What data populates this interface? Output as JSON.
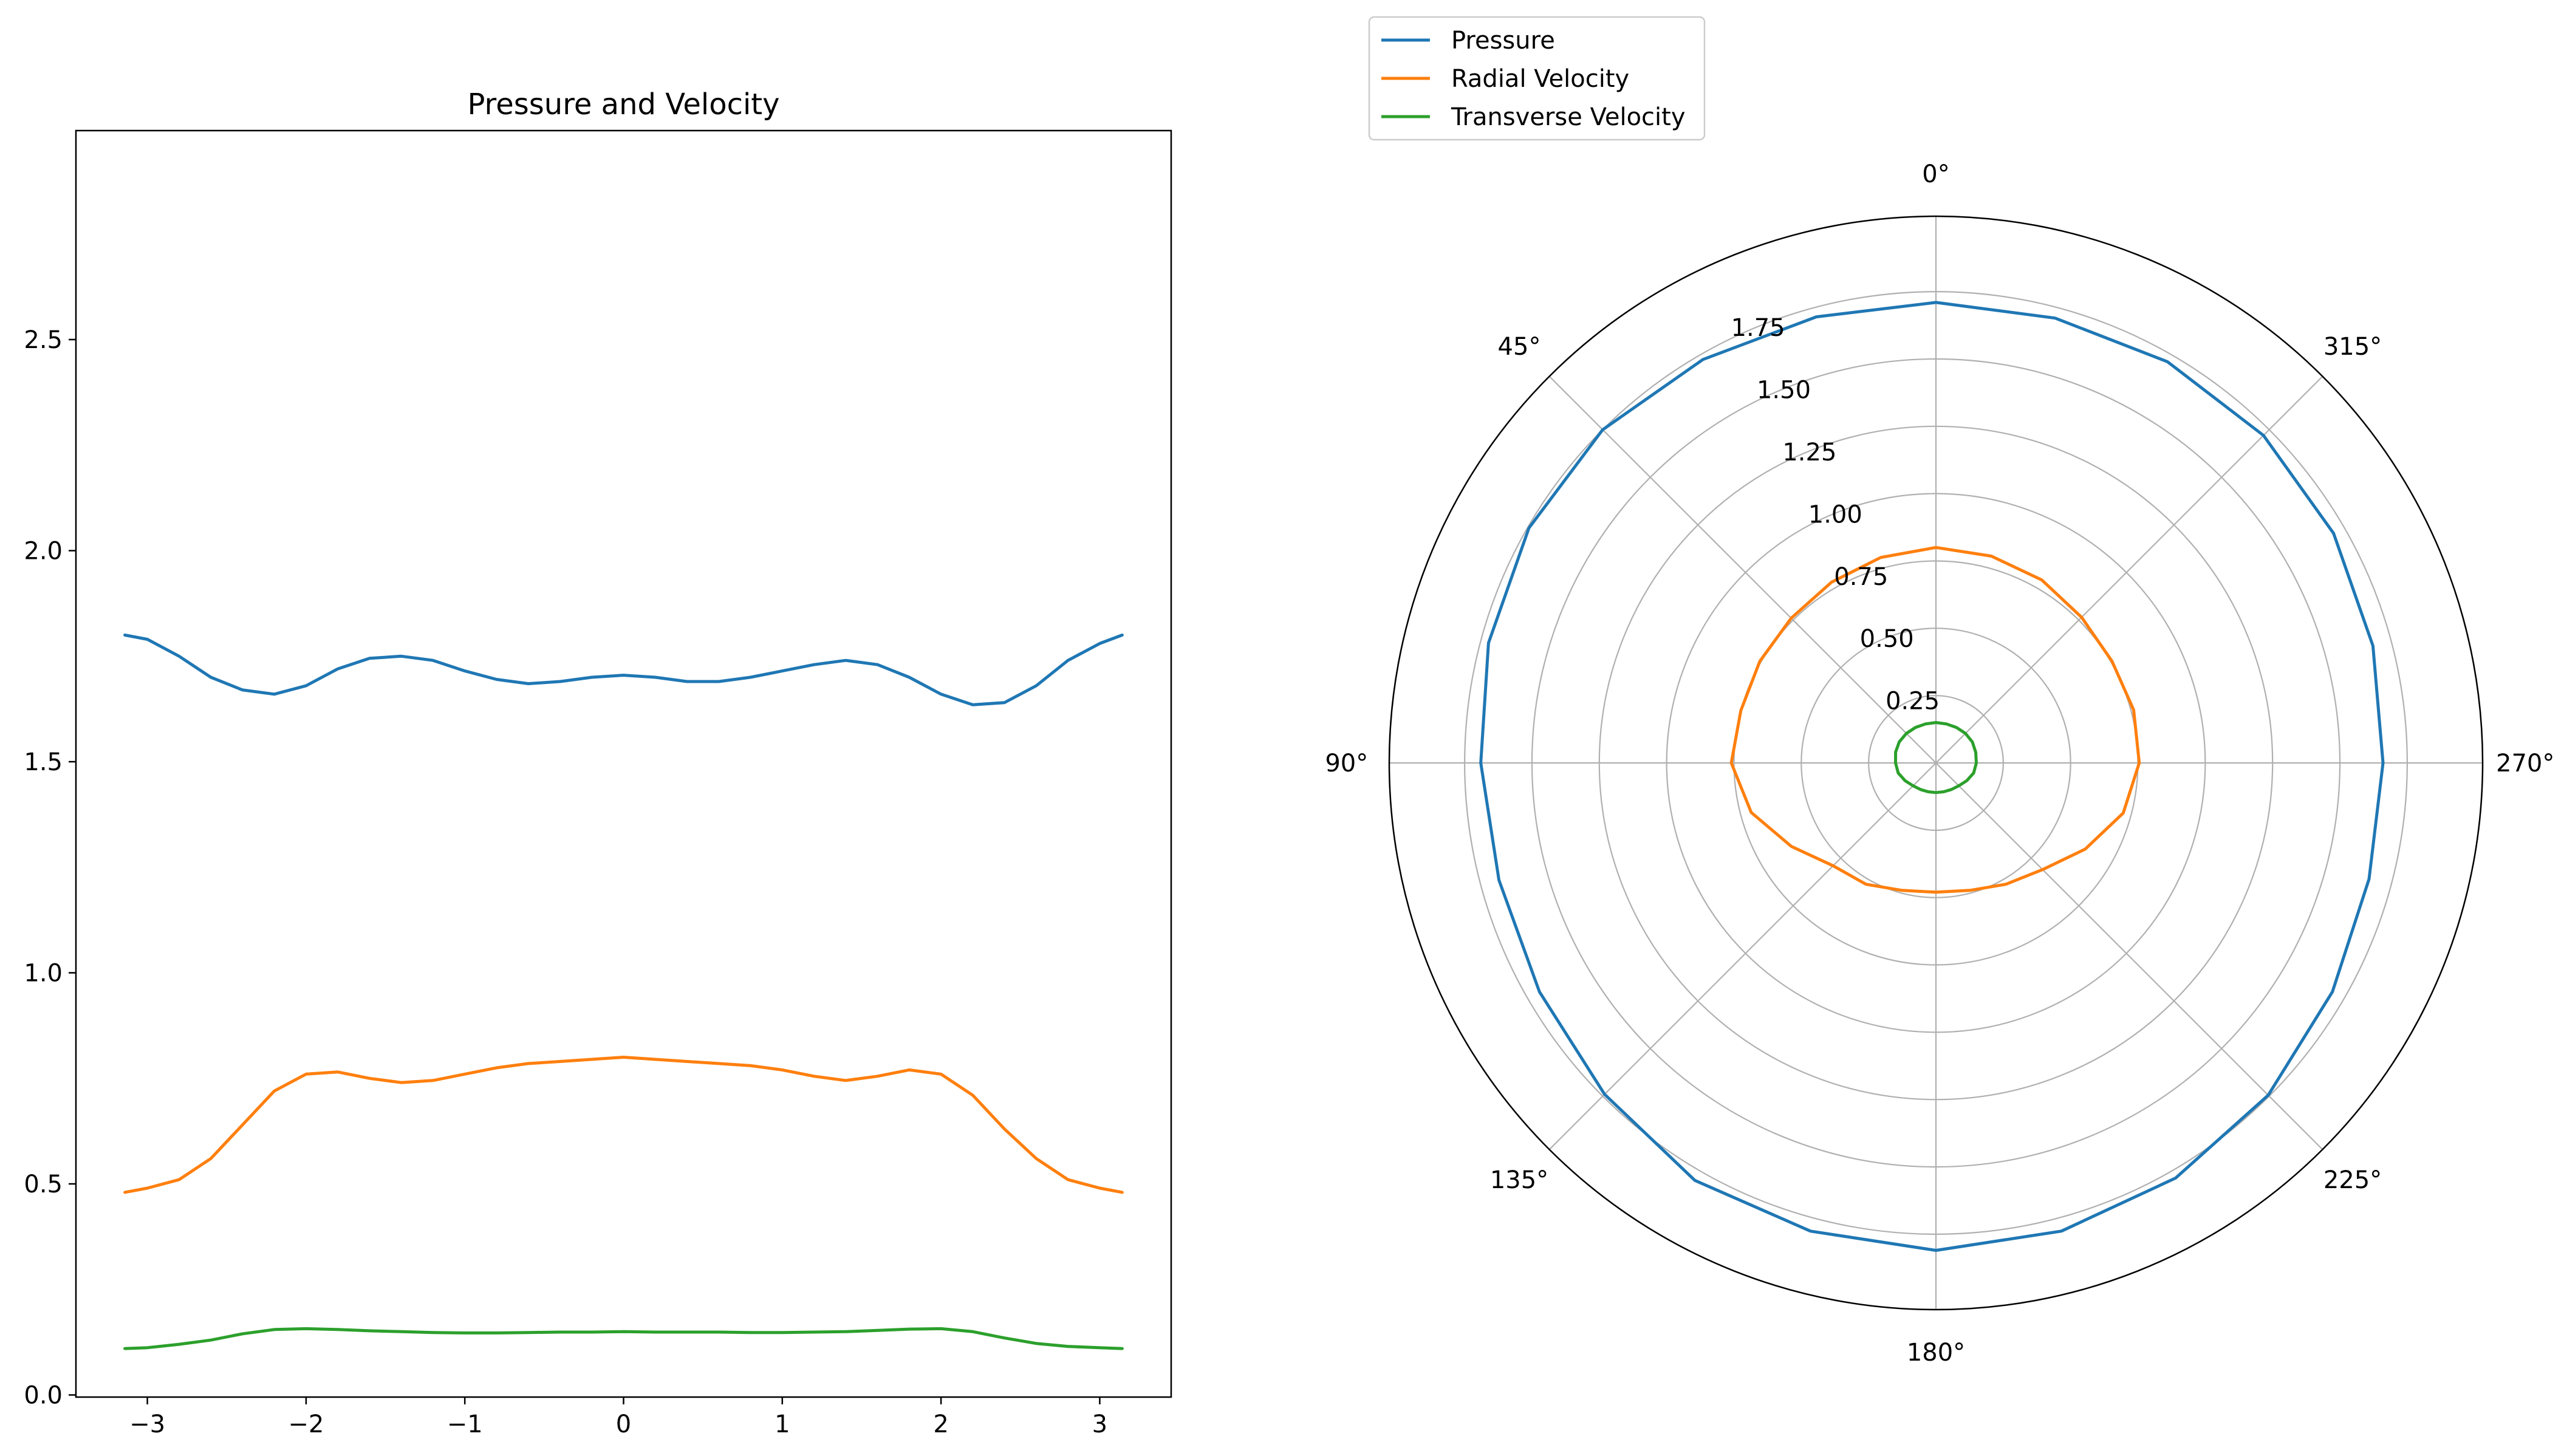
{
  "chart_data": [
    {
      "type": "line",
      "title": "Pressure and Velocity",
      "xlabel": "",
      "ylabel": "",
      "xlim": [
        -3.45,
        3.45
      ],
      "ylim": [
        -0.005,
        2.995
      ],
      "xticks": [
        -3,
        -2,
        -1,
        0,
        1,
        2,
        3
      ],
      "xtick_labels": [
        "−3",
        "−2",
        "−1",
        "0",
        "1",
        "2",
        "3"
      ],
      "yticks": [
        0.0,
        0.5,
        1.0,
        1.5,
        2.0,
        2.5
      ],
      "ytick_labels": [
        "0.0",
        "0.5",
        "1.0",
        "1.5",
        "2.0",
        "2.5"
      ],
      "grid": false,
      "x": [
        -3.1416,
        -3.0,
        -2.8,
        -2.6,
        -2.4,
        -2.2,
        -2.0,
        -1.8,
        -1.6,
        -1.4,
        -1.2,
        -1.0,
        -0.8,
        -0.6,
        -0.4,
        -0.2,
        0.0,
        0.2,
        0.4,
        0.6,
        0.8,
        1.0,
        1.2,
        1.4,
        1.6,
        1.8,
        2.0,
        2.2,
        2.4,
        2.6,
        2.8,
        3.0,
        3.1416
      ],
      "series": [
        {
          "name": "Pressure",
          "color": "#1f77b4",
          "values": [
            1.8,
            1.79,
            1.75,
            1.7,
            1.67,
            1.66,
            1.68,
            1.72,
            1.745,
            1.75,
            1.74,
            1.715,
            1.695,
            1.685,
            1.69,
            1.7,
            1.705,
            1.7,
            1.69,
            1.69,
            1.7,
            1.715,
            1.73,
            1.74,
            1.73,
            1.7,
            1.66,
            1.635,
            1.64,
            1.68,
            1.74,
            1.78,
            1.8
          ]
        },
        {
          "name": "Radial Velocity",
          "color": "#ff7f0e",
          "values": [
            0.48,
            0.49,
            0.51,
            0.56,
            0.64,
            0.72,
            0.76,
            0.765,
            0.75,
            0.74,
            0.745,
            0.76,
            0.775,
            0.785,
            0.79,
            0.795,
            0.8,
            0.795,
            0.79,
            0.785,
            0.78,
            0.77,
            0.755,
            0.745,
            0.755,
            0.77,
            0.76,
            0.71,
            0.63,
            0.56,
            0.51,
            0.49,
            0.48
          ]
        },
        {
          "name": "Transverse Velocity",
          "color": "#2ca02c",
          "values": [
            0.11,
            0.112,
            0.12,
            0.13,
            0.145,
            0.155,
            0.157,
            0.155,
            0.152,
            0.15,
            0.148,
            0.147,
            0.147,
            0.148,
            0.149,
            0.149,
            0.15,
            0.149,
            0.149,
            0.149,
            0.148,
            0.148,
            0.149,
            0.15,
            0.153,
            0.156,
            0.157,
            0.15,
            0.135,
            0.122,
            0.115,
            0.112,
            0.11
          ]
        }
      ]
    },
    {
      "type": "polar",
      "theta_zero_location": "N",
      "theta_direction": "counterclockwise",
      "rlim": [
        0,
        2.03
      ],
      "rticks": [
        0.25,
        0.5,
        0.75,
        1.0,
        1.25,
        1.5,
        1.75
      ],
      "rtick_labels": [
        "0.25",
        "0.50",
        "0.75",
        "1.00",
        "1.25",
        "1.50",
        "1.75"
      ],
      "theta_ticks_deg": [
        0,
        45,
        90,
        135,
        180,
        225,
        270,
        315
      ],
      "theta_tick_labels": [
        "0°",
        "45°",
        "90°",
        "135°",
        "180°",
        "225°",
        "270°",
        "315°"
      ],
      "grid": true,
      "legend": {
        "placement": "top-left above plot",
        "entries": [
          "Pressure",
          "Radial Velocity",
          "Transverse Velocity"
        ]
      },
      "theta_deg": [
        0,
        15,
        30,
        45,
        60,
        75,
        90,
        105,
        120,
        135,
        150,
        165,
        180,
        195,
        210,
        225,
        240,
        255,
        270,
        285,
        300,
        315,
        330,
        345,
        360
      ],
      "series": [
        {
          "name": "Pressure",
          "color": "#1f77b4",
          "values": [
            1.71,
            1.715,
            1.73,
            1.75,
            1.745,
            1.72,
            1.69,
            1.68,
            1.7,
            1.74,
            1.79,
            1.8,
            1.81,
            1.8,
            1.78,
            1.745,
            1.7,
            1.665,
            1.66,
            1.68,
            1.705,
            1.72,
            1.72,
            1.71,
            1.71
          ]
        },
        {
          "name": "Radial Velocity",
          "color": "#ff7f0e",
          "values": [
            0.8,
            0.79,
            0.775,
            0.76,
            0.755,
            0.75,
            0.76,
            0.71,
            0.62,
            0.54,
            0.52,
            0.49,
            0.48,
            0.49,
            0.52,
            0.56,
            0.64,
            0.72,
            0.755,
            0.76,
            0.755,
            0.765,
            0.785,
            0.795,
            0.8
          ]
        },
        {
          "name": "Transverse Velocity",
          "color": "#2ca02c",
          "values": [
            0.15,
            0.15,
            0.152,
            0.155,
            0.157,
            0.155,
            0.15,
            0.145,
            0.132,
            0.12,
            0.114,
            0.111,
            0.11,
            0.111,
            0.114,
            0.12,
            0.132,
            0.145,
            0.15,
            0.153,
            0.156,
            0.155,
            0.152,
            0.15,
            0.15
          ]
        }
      ]
    }
  ]
}
